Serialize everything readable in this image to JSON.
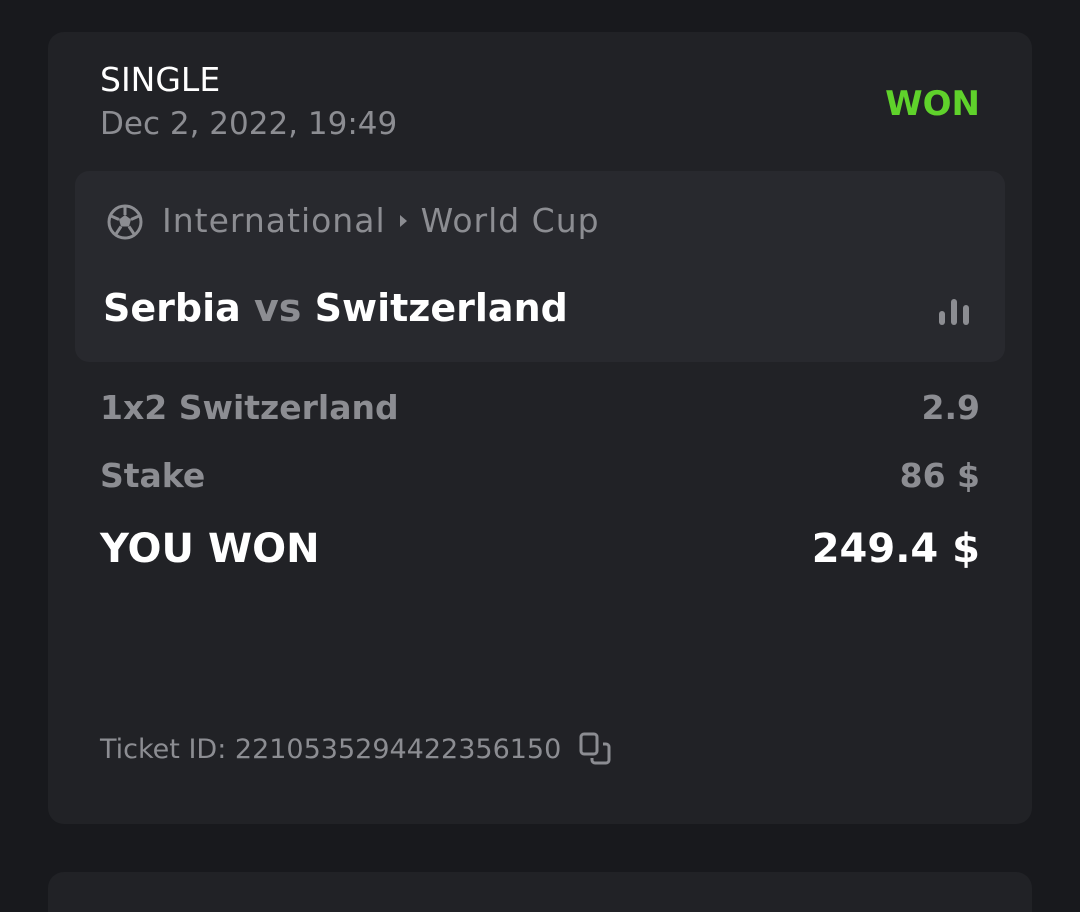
{
  "bet": {
    "type": "SINGLE",
    "date": "Dec 2, 2022, 19:49",
    "status": "WON",
    "status_color": "#5fd22b",
    "event": {
      "sport_icon": "soccer-ball-icon",
      "category": "International",
      "tournament": "World Cup",
      "home": "Serbia",
      "vs": "vs",
      "away": "Switzerland",
      "stats_icon": "bar-chart-icon"
    },
    "selection": {
      "label": "1x2 Switzerland",
      "odds": "2.9"
    },
    "stake": {
      "label": "Stake",
      "value": "86 $"
    },
    "payout": {
      "label": "YOU WON",
      "value": "249.4 $"
    },
    "ticket": {
      "label": "Ticket ID: 2210535294422356150",
      "copy_icon": "copy-icon"
    }
  }
}
